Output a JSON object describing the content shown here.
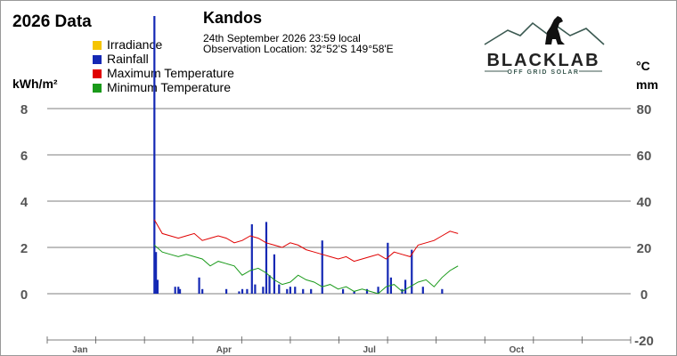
{
  "header": {
    "title": "2026 Data",
    "station": "Kandos",
    "timestamp": "24th September 2026  23:59 local",
    "observation": "Observation Location:   32°52'S 149°58'E"
  },
  "logo": {
    "name": "BLACKLAB",
    "tagline": "OFF GRID SOLAR"
  },
  "units": {
    "left": "kWh/m²",
    "right_temp": "°C",
    "right_rain": "mm"
  },
  "colors": {
    "irradiance": "#f5c400",
    "rainfall": "#1428b4",
    "max_temp": "#e00000",
    "min_temp": "#1a9a1a",
    "grid": "#555555"
  },
  "chart_data": {
    "type": "line",
    "legend": [
      {
        "name": "Irradiance",
        "color": "#f5c400"
      },
      {
        "name": "Rainfall",
        "color": "#1428b4"
      },
      {
        "name": "Maximum Temperature",
        "color": "#e00000"
      },
      {
        "name": "Minimum Temperature",
        "color": "#1a9a1a"
      }
    ],
    "y_left": {
      "label": "kWh/m²",
      "ticks": [
        0,
        2,
        4,
        6,
        8
      ],
      "range": [
        -1.5,
        8
      ]
    },
    "y_right": {
      "label": "°C / mm",
      "ticks": [
        -20,
        0,
        20,
        40,
        60,
        80
      ],
      "range": [
        -20,
        80
      ]
    },
    "x_axis": {
      "range_day": [
        0,
        365
      ],
      "labels": [
        {
          "label": "Jan",
          "day": 15
        },
        {
          "label": "Apr",
          "day": 105
        },
        {
          "label": "Jul",
          "day": 196
        },
        {
          "label": "Oct",
          "day": 288
        }
      ]
    },
    "rainfall": [
      {
        "day": 67,
        "mm": 120
      },
      {
        "day": 68,
        "mm": 18
      },
      {
        "day": 69,
        "mm": 6
      },
      {
        "day": 80,
        "mm": 3
      },
      {
        "day": 82,
        "mm": 3
      },
      {
        "day": 83,
        "mm": 2
      },
      {
        "day": 95,
        "mm": 7
      },
      {
        "day": 97,
        "mm": 2
      },
      {
        "day": 112,
        "mm": 2
      },
      {
        "day": 120,
        "mm": 1
      },
      {
        "day": 122,
        "mm": 2
      },
      {
        "day": 125,
        "mm": 2
      },
      {
        "day": 128,
        "mm": 30
      },
      {
        "day": 130,
        "mm": 4
      },
      {
        "day": 135,
        "mm": 3
      },
      {
        "day": 137,
        "mm": 31
      },
      {
        "day": 139,
        "mm": 8
      },
      {
        "day": 142,
        "mm": 17
      },
      {
        "day": 145,
        "mm": 4
      },
      {
        "day": 150,
        "mm": 2
      },
      {
        "day": 152,
        "mm": 3
      },
      {
        "day": 155,
        "mm": 3
      },
      {
        "day": 160,
        "mm": 2
      },
      {
        "day": 165,
        "mm": 2
      },
      {
        "day": 172,
        "mm": 23
      },
      {
        "day": 185,
        "mm": 2
      },
      {
        "day": 192,
        "mm": 1
      },
      {
        "day": 200,
        "mm": 2
      },
      {
        "day": 207,
        "mm": 3
      },
      {
        "day": 213,
        "mm": 22
      },
      {
        "day": 215,
        "mm": 7
      },
      {
        "day": 222,
        "mm": 2
      },
      {
        "day": 224,
        "mm": 6
      },
      {
        "day": 228,
        "mm": 19
      },
      {
        "day": 235,
        "mm": 3
      },
      {
        "day": 247,
        "mm": 2
      }
    ],
    "series": [
      {
        "name": "Maximum Temperature",
        "color": "#e00000",
        "x_start_day": 67,
        "x_step_days": 5,
        "values": [
          32,
          26,
          25,
          24,
          25,
          26,
          23,
          24,
          25,
          24,
          22,
          23,
          25,
          24,
          22,
          21,
          20,
          22,
          21,
          19,
          18,
          17,
          16,
          15,
          16,
          14,
          15,
          16,
          17,
          15,
          18,
          17,
          16,
          21,
          22,
          23,
          25,
          27,
          26
        ]
      },
      {
        "name": "Minimum Temperature",
        "color": "#1a9a1a",
        "x_start_day": 67,
        "x_step_days": 5,
        "values": [
          21,
          18,
          17,
          16,
          17,
          16,
          15,
          12,
          14,
          13,
          12,
          8,
          10,
          11,
          9,
          6,
          4,
          5,
          8,
          6,
          5,
          3,
          4,
          2,
          3,
          1,
          2,
          1,
          0,
          3,
          4,
          1,
          3,
          5,
          6,
          3,
          7,
          10,
          12
        ]
      }
    ]
  }
}
